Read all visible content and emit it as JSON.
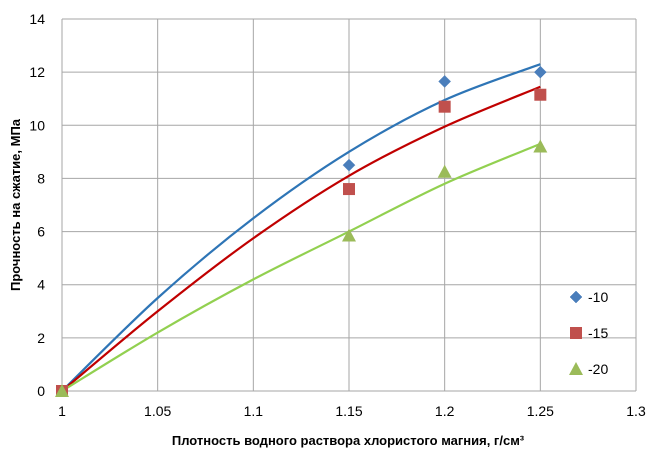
{
  "chart_data": {
    "type": "scatter",
    "title": "",
    "xlabel": "Плотность водного раствора хлористого магния, г/см³",
    "ylabel": "Прочность на сжатие, МПа",
    "xlim": [
      1,
      1.3
    ],
    "ylim": [
      0,
      14
    ],
    "xticks": [
      "1",
      "1.05",
      "1.1",
      "1.15",
      "1.2",
      "1.25",
      "1.3"
    ],
    "yticks": [
      "0",
      "2",
      "4",
      "6",
      "8",
      "10",
      "12",
      "14"
    ],
    "grid": true,
    "legend_position": "right",
    "series": [
      {
        "name": "-10",
        "color": "#4a7ebb",
        "trend_color": "#2e75b6",
        "marker": "diamond",
        "x": [
          1,
          1.15,
          1.2,
          1.25
        ],
        "y": [
          0,
          8.5,
          11.65,
          12.0
        ],
        "trend": {
          "x": [
            1,
            1.05,
            1.1,
            1.15,
            1.2,
            1.25
          ],
          "y": [
            0,
            3.5,
            6.5,
            9.0,
            10.95,
            12.3
          ]
        }
      },
      {
        "name": "-15",
        "color": "#c0504d",
        "trend_color": "#c00000",
        "marker": "square",
        "x": [
          1,
          1.15,
          1.2,
          1.25
        ],
        "y": [
          0,
          7.6,
          10.7,
          11.15
        ],
        "trend": {
          "x": [
            1,
            1.05,
            1.1,
            1.15,
            1.2,
            1.25
          ],
          "y": [
            0,
            3.0,
            5.75,
            8.1,
            9.95,
            11.45
          ]
        }
      },
      {
        "name": "-20",
        "color": "#9bbb59",
        "trend_color": "#92d050",
        "marker": "triangle",
        "x": [
          1,
          1.15,
          1.2,
          1.25
        ],
        "y": [
          0,
          5.85,
          8.25,
          9.2
        ],
        "trend": {
          "x": [
            1,
            1.05,
            1.1,
            1.15,
            1.2,
            1.25
          ],
          "y": [
            0,
            2.2,
            4.2,
            6.0,
            7.8,
            9.3
          ]
        }
      }
    ]
  }
}
